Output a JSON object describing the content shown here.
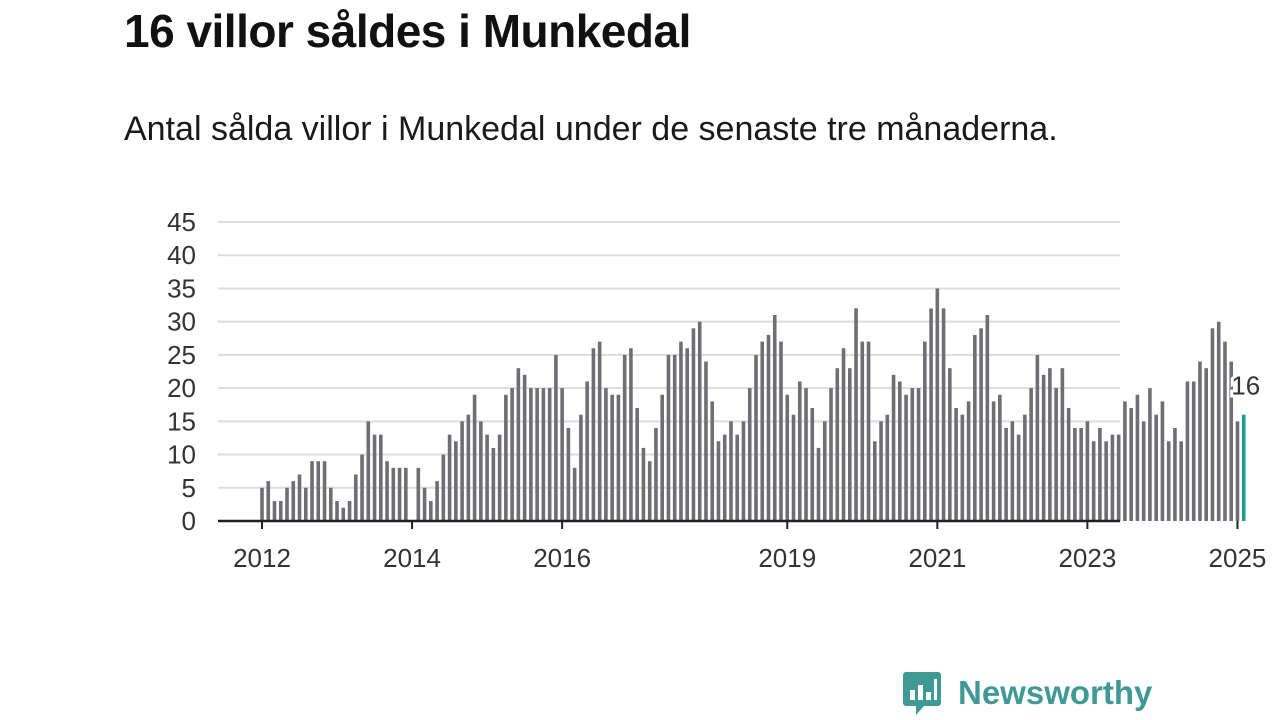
{
  "header": {
    "title": "16 villor såldes i Munkedal",
    "subtitle": "Antal sålda villor i Munkedal under de senaste tre månaderna."
  },
  "brand": {
    "name": "Newsworthy",
    "icon": "bar-chart-speech-bubble-icon",
    "color": "#3f9a95"
  },
  "chart_data": {
    "type": "bar",
    "title": "",
    "xlabel": "",
    "ylabel": "",
    "ylim": [
      0,
      45
    ],
    "yticks": [
      0,
      5,
      10,
      15,
      20,
      25,
      30,
      35,
      40,
      45
    ],
    "xticks": [
      "2012",
      "2014",
      "2016",
      "2019",
      "2021",
      "2023",
      "2025"
    ],
    "grid": true,
    "bar_color": "#6e6e73",
    "highlight_color": "#1a9e96",
    "start": "2012-01",
    "period": "monthly",
    "values": [
      5,
      6,
      3,
      3,
      5,
      6,
      7,
      5,
      9,
      9,
      9,
      5,
      3,
      2,
      3,
      7,
      10,
      15,
      13,
      13,
      9,
      8,
      8,
      8,
      0,
      8,
      5,
      3,
      6,
      10,
      13,
      12,
      15,
      16,
      19,
      15,
      13,
      11,
      13,
      19,
      20,
      23,
      22,
      20,
      20,
      20,
      20,
      25,
      20,
      14,
      8,
      16,
      21,
      26,
      27,
      20,
      19,
      19,
      25,
      26,
      17,
      11,
      9,
      14,
      19,
      25,
      25,
      27,
      26,
      29,
      30,
      24,
      18,
      12,
      13,
      15,
      13,
      15,
      20,
      25,
      27,
      28,
      31,
      27,
      19,
      16,
      21,
      20,
      17,
      11,
      15,
      20,
      23,
      26,
      23,
      32,
      27,
      27,
      12,
      15,
      16,
      22,
      21,
      19,
      20,
      20,
      27,
      32,
      35,
      32,
      23,
      17,
      16,
      18,
      28,
      29,
      31,
      18,
      19,
      14,
      15,
      13,
      16,
      20,
      25,
      22,
      23,
      20,
      23,
      17,
      14,
      14,
      15,
      12,
      14,
      12,
      13,
      13,
      18,
      17,
      19,
      15,
      20,
      16,
      18,
      12,
      14,
      12,
      21,
      21,
      24,
      23,
      29,
      30,
      27,
      24,
      15,
      16
    ],
    "highlight": {
      "label": "16",
      "value": 16
    }
  }
}
